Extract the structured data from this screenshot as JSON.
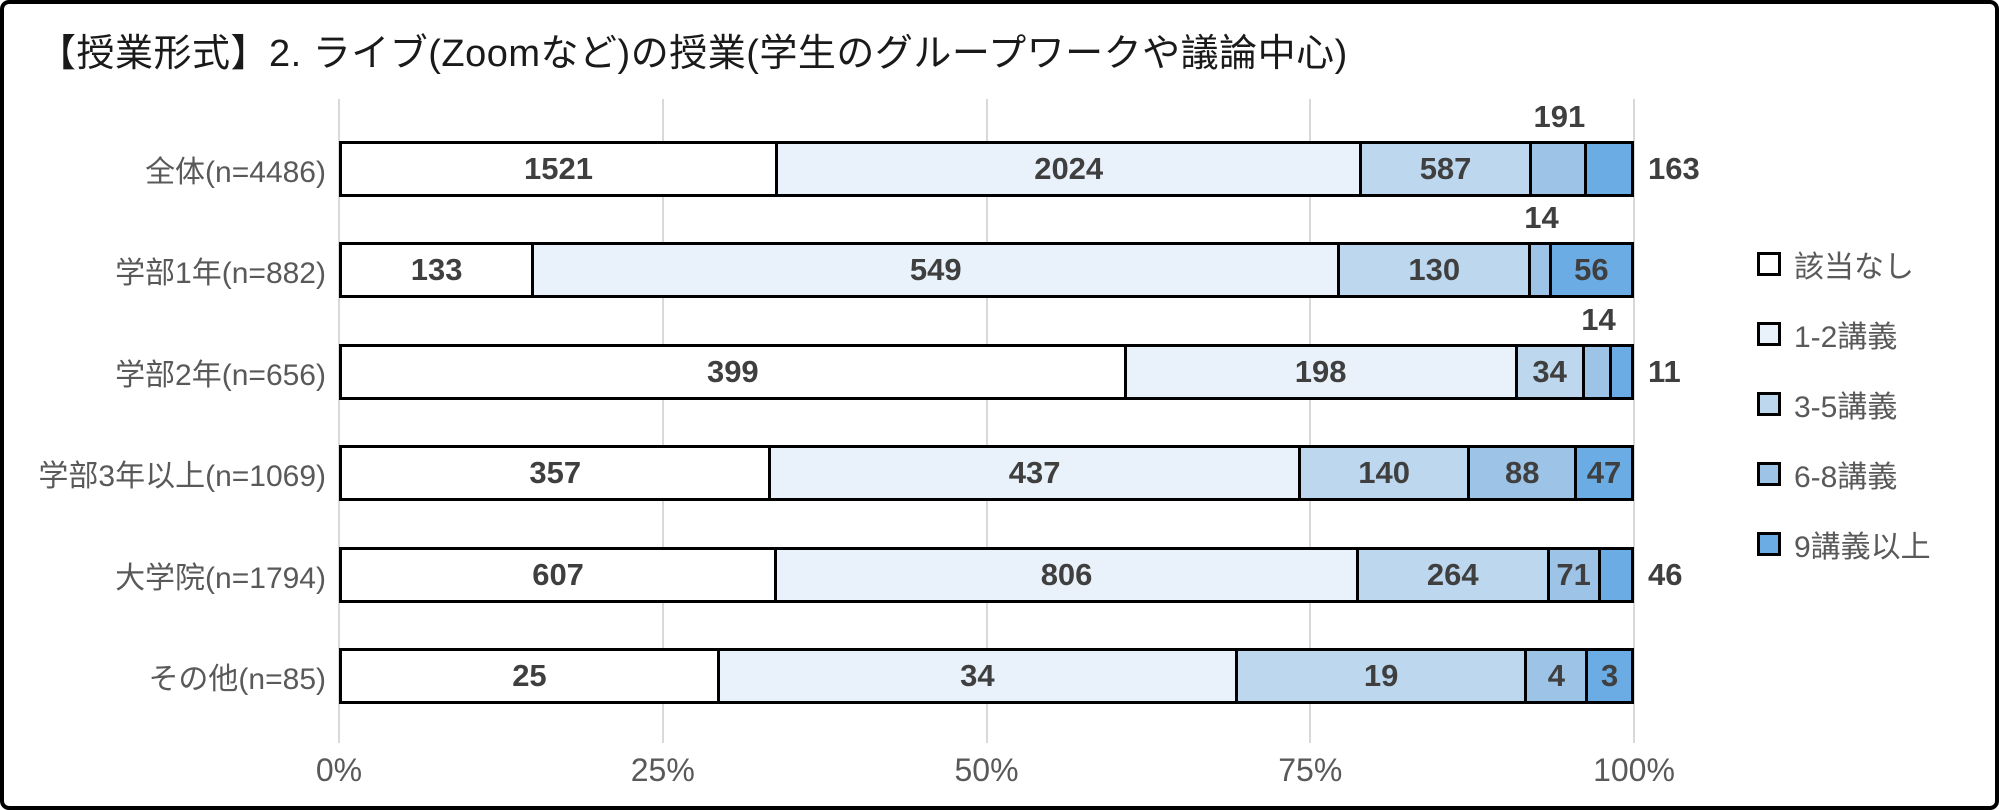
{
  "chart_data": {
    "type": "bar",
    "orientation": "horizontal",
    "stacking": "100%",
    "title": "【授業形式】2. ライブ(Zoomなど)の授業(学生のグループワークや議論中心)",
    "categories": [
      "全体(n=4486)",
      "学部1年(n=882)",
      "学部2年(n=656)",
      "学部3年以上(n=1069)",
      "大学院(n=1794)",
      "その他(n=85)"
    ],
    "totals": [
      4486,
      882,
      656,
      1069,
      1794,
      85
    ],
    "series": [
      {
        "name": "該当なし",
        "color": "#FFFFFF",
        "values": [
          1521,
          133,
          399,
          357,
          607,
          25
        ]
      },
      {
        "name": "1-2講義",
        "color": "#E9F2FA",
        "values": [
          2024,
          549,
          198,
          437,
          806,
          34
        ]
      },
      {
        "name": "3-5講義",
        "color": "#BDD7EE",
        "values": [
          587,
          130,
          34,
          140,
          264,
          19
        ]
      },
      {
        "name": "6-8講義",
        "color": "#9DC3E6",
        "values": [
          191,
          14,
          14,
          88,
          71,
          4
        ]
      },
      {
        "name": "9講義以上",
        "color": "#6AACE3",
        "values": [
          163,
          56,
          11,
          47,
          46,
          3
        ]
      }
    ],
    "x_ticks": [
      "0%",
      "25%",
      "50%",
      "75%",
      "100%"
    ],
    "x_tick_positions": [
      0,
      25,
      50,
      75,
      100
    ],
    "xlim": [
      0,
      100
    ],
    "grid": true,
    "legend_position": "right",
    "label_placements": [
      [
        "inside",
        "inside",
        "inside",
        "above",
        "outside"
      ],
      [
        "inside",
        "inside",
        "inside",
        "above",
        "inside"
      ],
      [
        "inside",
        "inside",
        "inside",
        "above",
        "outside"
      ],
      [
        "inside",
        "inside",
        "inside",
        "inside",
        "inside"
      ],
      [
        "inside",
        "inside",
        "inside",
        "inside",
        "outside"
      ],
      [
        "inside",
        "inside",
        "inside",
        "inside",
        "inside"
      ]
    ],
    "style_colors": {
      "grid": "#D9D9D9",
      "value_label": "#3F3F3F",
      "axis_label": "#595959",
      "segment_border": "#000000",
      "frame_border": "#000000"
    }
  }
}
